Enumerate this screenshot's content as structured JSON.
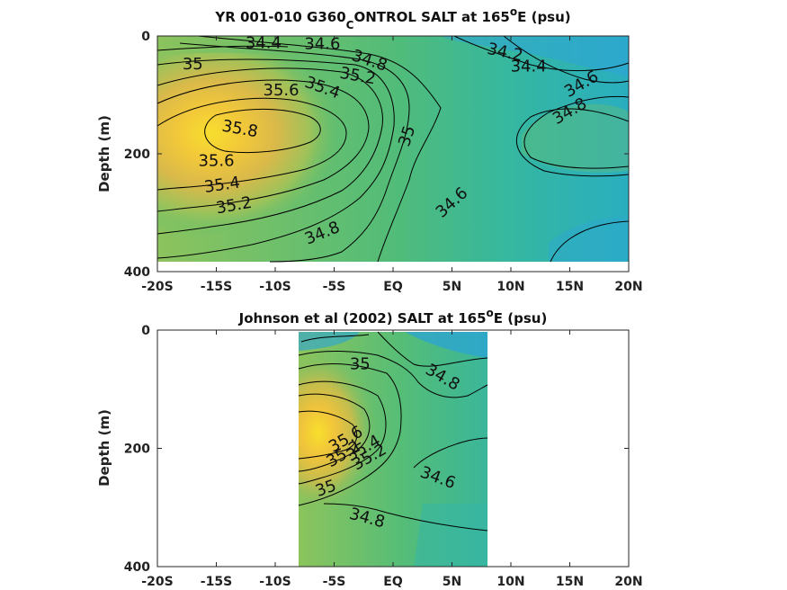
{
  "chart_data": [
    {
      "type": "contour",
      "title_main": "YR 001-010 G360",
      "title_sub": "C",
      "title_rest": "ONTROL SALT at 165",
      "title_sup": "o",
      "title_end": "E (psu)",
      "ylabel": "Depth (m)",
      "xlim": [
        -20,
        20
      ],
      "ylim": [
        400,
        0
      ],
      "x_ticks": [
        "-20S",
        "-15S",
        "-10S",
        "-5S",
        "EQ",
        "5N",
        "10N",
        "15N",
        "20N"
      ],
      "y_ticks": [
        "0",
        "200",
        "400"
      ],
      "data_extent": {
        "x": [
          -20,
          20
        ],
        "depth": [
          0,
          385
        ]
      },
      "contour_levels": [
        34.2,
        34.4,
        34.6,
        34.8,
        35,
        35.2,
        35.4,
        35.6,
        35.8
      ],
      "contour_labels": [
        {
          "text": "34.4",
          "x": -11.0,
          "depth": 12,
          "rot": 0
        },
        {
          "text": "34.6",
          "x": -6.0,
          "depth": 14,
          "rot": 0
        },
        {
          "text": "34.8",
          "x": -2.0,
          "depth": 42,
          "rot": 18
        },
        {
          "text": "35",
          "x": -17.0,
          "depth": 48,
          "rot": 0
        },
        {
          "text": "35.2",
          "x": -3.0,
          "depth": 68,
          "rot": 10
        },
        {
          "text": "35.4",
          "x": -6.0,
          "depth": 88,
          "rot": 20
        },
        {
          "text": "35.6",
          "x": -9.5,
          "depth": 92,
          "rot": 0
        },
        {
          "text": "35.8",
          "x": -13.0,
          "depth": 158,
          "rot": 10
        },
        {
          "text": "35.6",
          "x": -15.0,
          "depth": 212,
          "rot": 0
        },
        {
          "text": "35.4",
          "x": -14.5,
          "depth": 253,
          "rot": -8
        },
        {
          "text": "35.2",
          "x": -13.5,
          "depth": 288,
          "rot": -10
        },
        {
          "text": "35",
          "x": 1.2,
          "depth": 170,
          "rot": -72
        },
        {
          "text": "34.8",
          "x": -6.0,
          "depth": 335,
          "rot": -22
        },
        {
          "text": "34.6",
          "x": 5.0,
          "depth": 283,
          "rot": -42
        },
        {
          "text": "34.2",
          "x": 9.5,
          "depth": 28,
          "rot": 12
        },
        {
          "text": "34.4",
          "x": 11.5,
          "depth": 52,
          "rot": 0
        },
        {
          "text": "34.6",
          "x": 16.0,
          "depth": 82,
          "rot": -30
        },
        {
          "text": "34.8",
          "x": 15.0,
          "depth": 128,
          "rot": -30
        }
      ]
    },
    {
      "type": "contour",
      "title_main": "Johnson et al (2002) SALT at 165",
      "title_sup": "o",
      "title_end": "E (psu)",
      "ylabel": "Depth (m)",
      "xlim": [
        -20,
        20
      ],
      "ylim": [
        400,
        0
      ],
      "x_ticks": [
        "-20S",
        "-15S",
        "-10S",
        "-5S",
        "EQ",
        "5N",
        "10N",
        "15N",
        "20N"
      ],
      "y_ticks": [
        "0",
        "200",
        "400"
      ],
      "data_extent": {
        "x": [
          -8,
          8
        ],
        "depth": [
          0,
          400
        ]
      },
      "contour_levels": [
        34.6,
        34.8,
        35,
        35.2,
        35.4,
        35.6
      ],
      "contour_labels": [
        {
          "text": "35",
          "x": -2.8,
          "depth": 58,
          "rot": 0
        },
        {
          "text": "34.8",
          "x": 4.2,
          "depth": 80,
          "rot": 30
        },
        {
          "text": "35.6",
          "x": -4.0,
          "depth": 185,
          "rot": -30
        },
        {
          "text": "35.4",
          "x": -2.5,
          "depth": 200,
          "rot": -30
        },
        {
          "text": "35.2",
          "x": -4.2,
          "depth": 210,
          "rot": -30
        },
        {
          "text": "35.2",
          "x": -2.0,
          "depth": 215,
          "rot": -30
        },
        {
          "text": "34.6",
          "x": 3.8,
          "depth": 250,
          "rot": 20
        },
        {
          "text": "35",
          "x": -5.7,
          "depth": 268,
          "rot": -20
        },
        {
          "text": "34.8",
          "x": -2.2,
          "depth": 318,
          "rot": 15
        }
      ]
    }
  ]
}
